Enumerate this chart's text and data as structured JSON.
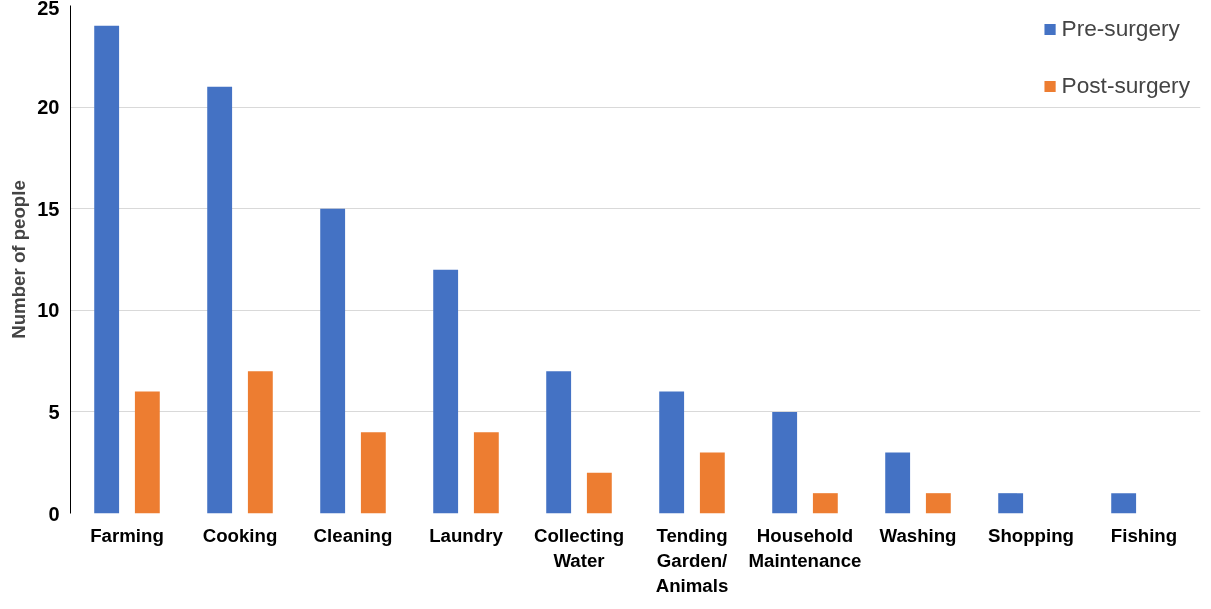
{
  "chart_data": {
    "type": "bar",
    "ylabel": "Number of people",
    "categories": [
      "Farming",
      "Cooking",
      "Cleaning",
      "Laundry",
      "Collecting Water",
      "Tending Garden/ Animals",
      "Household Maintenance",
      "Washing",
      "Shopping",
      "Fishing"
    ],
    "series": [
      {
        "name": "Pre-surgery",
        "color": "#4472c4",
        "values": [
          24,
          21,
          15,
          12,
          7,
          6,
          5,
          3,
          1,
          1
        ]
      },
      {
        "name": "Post-surgery",
        "color": "#ed7d31",
        "values": [
          6,
          7,
          4,
          4,
          2,
          3,
          1,
          1,
          0,
          0
        ]
      }
    ],
    "ylim": [
      0,
      25
    ],
    "yticks": [
      0,
      5,
      10,
      15,
      20,
      25
    ],
    "grid": "y",
    "legend": "top right"
  }
}
